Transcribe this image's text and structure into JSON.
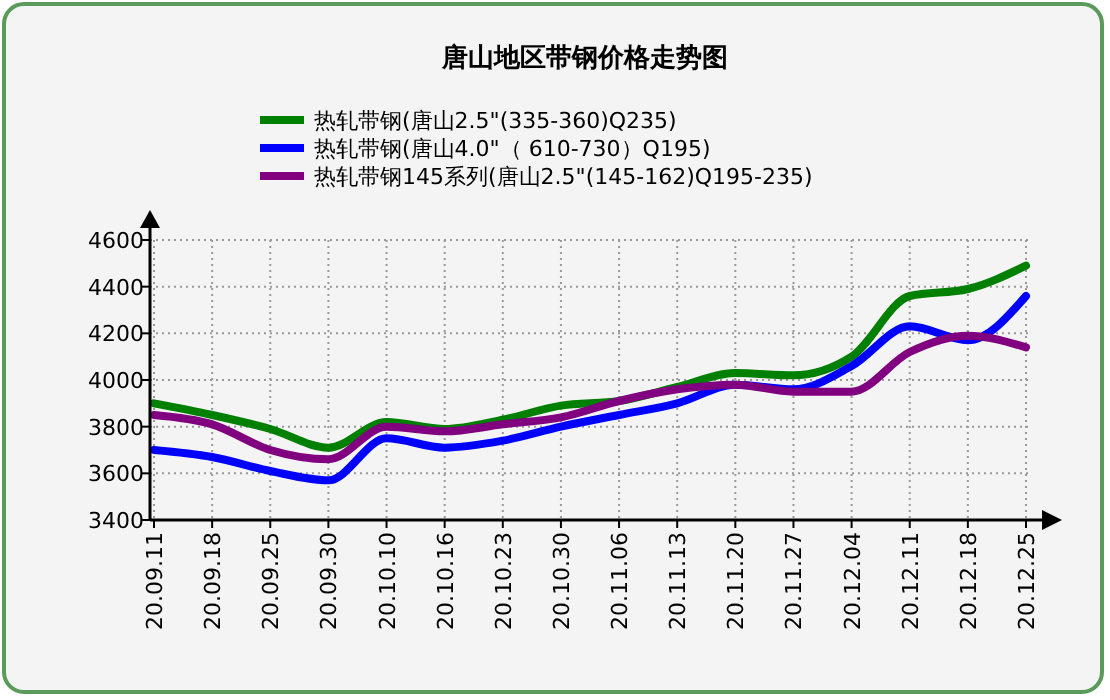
{
  "chart_data": {
    "type": "line",
    "title": "唐山地区带钢价格走势图",
    "categories": [
      "20.09.11",
      "20.09.18",
      "20.09.25",
      "20.09.30",
      "20.10.10",
      "20.10.16",
      "20.10.23",
      "20.10.30",
      "20.11.06",
      "20.11.13",
      "20.11.20",
      "20.11.27",
      "20.12.04",
      "20.12.11",
      "20.12.18",
      "20.12.25"
    ],
    "series": [
      {
        "name": "热轧带钢(唐山2.5\"(335-360)Q235)",
        "color": "#008000",
        "values": [
          3900,
          3850,
          3790,
          3710,
          3820,
          3790,
          3830,
          3890,
          3910,
          3970,
          4030,
          4020,
          4100,
          4360,
          4390,
          4490
        ]
      },
      {
        "name": "热轧带钢(唐山4.0\"（ 610-730）Q195)",
        "color": "#0000ff",
        "values": [
          3700,
          3670,
          3610,
          3570,
          3750,
          3710,
          3740,
          3800,
          3850,
          3900,
          3980,
          3960,
          4060,
          4230,
          4170,
          4360
        ]
      },
      {
        "name": "热轧带钢145系列(唐山2.5\"(145-162)Q195-235)",
        "color": "#800080",
        "values": [
          3850,
          3810,
          3700,
          3660,
          3800,
          3780,
          3810,
          3840,
          3910,
          3960,
          3980,
          3950,
          3950,
          4120,
          4190,
          4140
        ]
      }
    ],
    "ylim": [
      3400,
      4600
    ],
    "yticks": [
      3400,
      3600,
      3800,
      4000,
      4200,
      4400,
      4600
    ],
    "grid": true,
    "legend": "top",
    "marker": "none",
    "line_style": "solid"
  }
}
